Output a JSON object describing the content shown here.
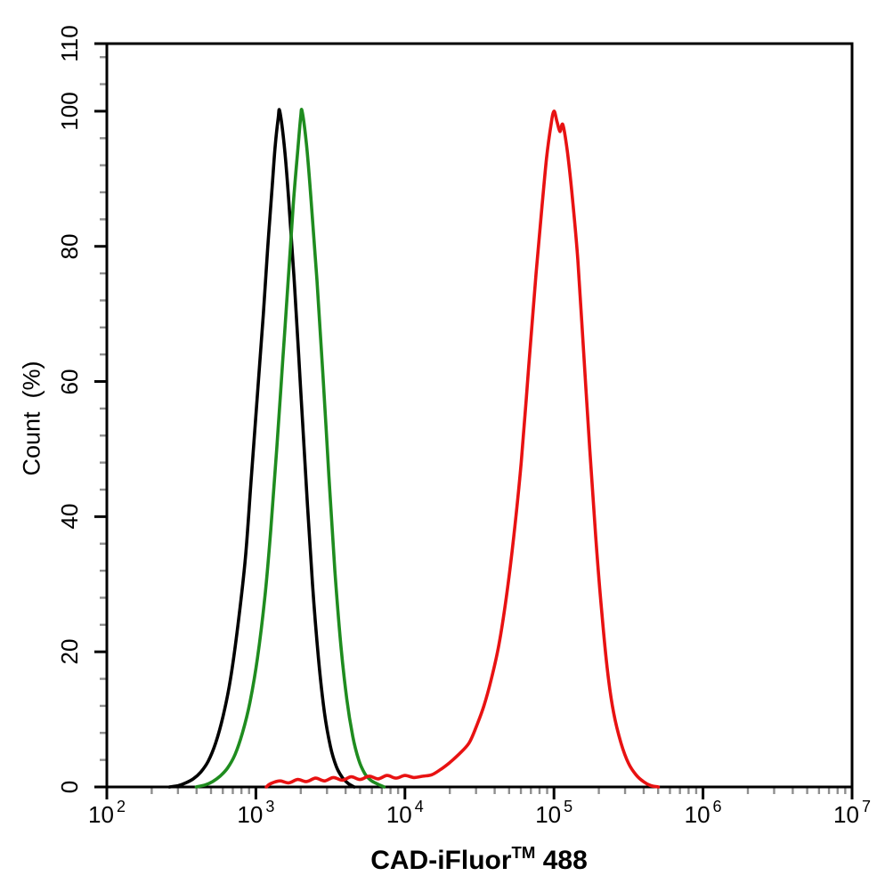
{
  "figure": {
    "background": "#ffffff",
    "y_title": "Count  (%)",
    "x_title_parts": {
      "prefix": "CAD-iFluor",
      "tm": "TM",
      "suffix": " 488"
    }
  },
  "colors": {
    "axis": "#000000",
    "major_tick": "#000000",
    "minor_tick": "#8f8f8f",
    "text": "#000000"
  },
  "chart_data": {
    "type": "line",
    "subtype": "flow-cytometry-histogram",
    "title": "",
    "xlabel": "CAD-iFluor™ 488",
    "ylabel": "Count (%)",
    "x_scale": "log10",
    "grid": false,
    "legend": null,
    "x_axis": {
      "min_exp": 2,
      "max_exp": 7,
      "major_tick_exponents": [
        2,
        3,
        4,
        5,
        6,
        7
      ],
      "minor_ticks_per_decade": [
        2,
        3,
        4,
        5,
        6,
        7,
        8,
        9
      ]
    },
    "y_axis": {
      "min": 0,
      "max": 110,
      "major_ticks": [
        0,
        20,
        40,
        60,
        80,
        100,
        110
      ],
      "minor_tick_step": 4
    },
    "series": [
      {
        "name": "black-curve",
        "color": "#000000",
        "peak": {
          "x_log10": 3.16,
          "x_value": 1450,
          "y_percent": 100
        },
        "points_log10x_percent": [
          [
            2.42,
            0
          ],
          [
            2.48,
            0.2
          ],
          [
            2.53,
            0.6
          ],
          [
            2.58,
            1.2
          ],
          [
            2.63,
            2.2
          ],
          [
            2.68,
            3.8
          ],
          [
            2.73,
            6.5
          ],
          [
            2.78,
            10.5
          ],
          [
            2.83,
            16
          ],
          [
            2.88,
            24
          ],
          [
            2.93,
            34
          ],
          [
            2.97,
            46
          ],
          [
            3.01,
            58
          ],
          [
            3.05,
            70
          ],
          [
            3.08,
            80
          ],
          [
            3.11,
            89
          ],
          [
            3.13,
            95
          ],
          [
            3.15,
            99
          ],
          [
            3.16,
            100
          ],
          [
            3.19,
            95
          ],
          [
            3.22,
            87
          ],
          [
            3.26,
            74
          ],
          [
            3.3,
            59
          ],
          [
            3.34,
            44
          ],
          [
            3.38,
            30
          ],
          [
            3.42,
            19
          ],
          [
            3.46,
            11
          ],
          [
            3.5,
            6
          ],
          [
            3.54,
            3
          ],
          [
            3.58,
            1.4
          ],
          [
            3.62,
            0.5
          ],
          [
            3.66,
            0
          ]
        ]
      },
      {
        "name": "green-curve",
        "color": "#1f8c1f",
        "peak": {
          "x_log10": 3.31,
          "x_value": 2050,
          "y_percent": 100
        },
        "points_log10x_percent": [
          [
            2.6,
            0
          ],
          [
            2.66,
            0.3
          ],
          [
            2.71,
            0.8
          ],
          [
            2.76,
            1.6
          ],
          [
            2.81,
            2.8
          ],
          [
            2.86,
            4.8
          ],
          [
            2.91,
            8
          ],
          [
            2.96,
            12.5
          ],
          [
            3.01,
            19
          ],
          [
            3.06,
            28
          ],
          [
            3.1,
            38
          ],
          [
            3.14,
            50
          ],
          [
            3.18,
            63
          ],
          [
            3.22,
            76
          ],
          [
            3.25,
            86
          ],
          [
            3.28,
            94
          ],
          [
            3.3,
            99
          ],
          [
            3.31,
            100
          ],
          [
            3.34,
            95
          ],
          [
            3.37,
            87
          ],
          [
            3.41,
            75
          ],
          [
            3.45,
            61
          ],
          [
            3.49,
            46
          ],
          [
            3.53,
            32
          ],
          [
            3.57,
            21
          ],
          [
            3.61,
            13
          ],
          [
            3.65,
            7.5
          ],
          [
            3.69,
            4
          ],
          [
            3.73,
            2
          ],
          [
            3.77,
            1
          ],
          [
            3.81,
            0.5
          ],
          [
            3.86,
            0
          ]
        ]
      },
      {
        "name": "red-curve",
        "color": "#e81212",
        "peak": {
          "x_log10": 5.0,
          "x_value": 100000,
          "y_percent": 100
        },
        "points_log10x_percent": [
          [
            3.07,
            0
          ],
          [
            3.1,
            0.5
          ],
          [
            3.16,
            0.9
          ],
          [
            3.22,
            0.6
          ],
          [
            3.28,
            1.1
          ],
          [
            3.34,
            0.8
          ],
          [
            3.4,
            1.3
          ],
          [
            3.46,
            0.9
          ],
          [
            3.52,
            1.4
          ],
          [
            3.58,
            1.0
          ],
          [
            3.64,
            1.5
          ],
          [
            3.7,
            1.1
          ],
          [
            3.76,
            1.6
          ],
          [
            3.82,
            1.2
          ],
          [
            3.88,
            1.7
          ],
          [
            3.94,
            1.3
          ],
          [
            4.0,
            1.7
          ],
          [
            4.06,
            1.4
          ],
          [
            4.12,
            1.6
          ],
          [
            4.18,
            1.8
          ],
          [
            4.24,
            2.6
          ],
          [
            4.3,
            3.6
          ],
          [
            4.36,
            4.8
          ],
          [
            4.43,
            6.5
          ],
          [
            4.48,
            9
          ],
          [
            4.53,
            12
          ],
          [
            4.58,
            16
          ],
          [
            4.63,
            21
          ],
          [
            4.68,
            28
          ],
          [
            4.73,
            37
          ],
          [
            4.78,
            48
          ],
          [
            4.83,
            62
          ],
          [
            4.88,
            76
          ],
          [
            4.92,
            86
          ],
          [
            4.95,
            93
          ],
          [
            4.98,
            98
          ],
          [
            5.0,
            100
          ],
          [
            5.02,
            98.5
          ],
          [
            5.04,
            97
          ],
          [
            5.06,
            98
          ],
          [
            5.09,
            94
          ],
          [
            5.12,
            88
          ],
          [
            5.16,
            78
          ],
          [
            5.2,
            64
          ],
          [
            5.24,
            50
          ],
          [
            5.28,
            37
          ],
          [
            5.32,
            26
          ],
          [
            5.36,
            17
          ],
          [
            5.4,
            11
          ],
          [
            5.45,
            6.5
          ],
          [
            5.5,
            3.5
          ],
          [
            5.55,
            1.8
          ],
          [
            5.6,
            0.8
          ],
          [
            5.65,
            0.2
          ],
          [
            5.7,
            0
          ]
        ]
      }
    ]
  }
}
